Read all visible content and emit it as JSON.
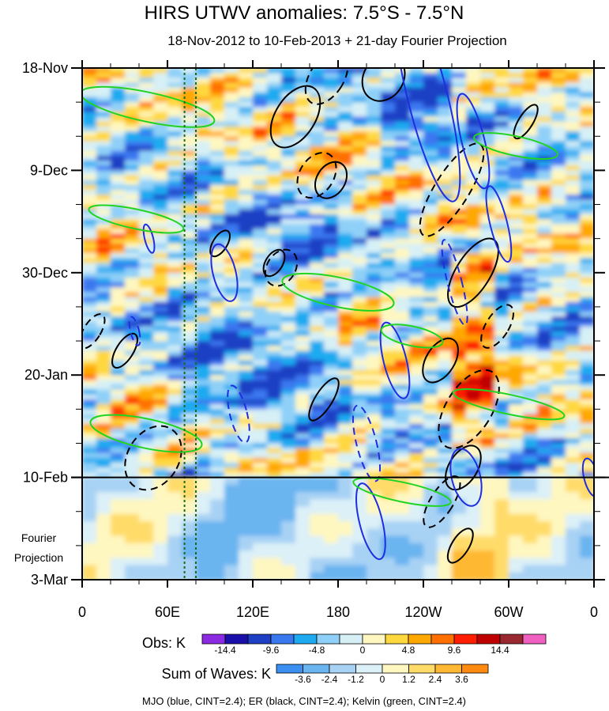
{
  "chart_data": {
    "type": "heatmap",
    "title": "HIRS UTWV anomalies: 7.5°S - 7.5°N",
    "subtitle": "18-Nov-2012 to 10-Feb-2013 + 21-day Fourier Projection",
    "x_axis": {
      "type": "longitude",
      "range_deg": [
        0,
        360
      ],
      "ticks": [
        {
          "lon": 0,
          "label": "0"
        },
        {
          "lon": 60,
          "label": "60E"
        },
        {
          "lon": 120,
          "label": "120E"
        },
        {
          "lon": 180,
          "label": "180"
        },
        {
          "lon": 240,
          "label": "120W"
        },
        {
          "lon": 300,
          "label": "60W"
        },
        {
          "lon": 360,
          "label": "0"
        }
      ]
    },
    "y_axis": {
      "type": "time",
      "start": "18-Nov-2012",
      "end": "3-Mar-2013",
      "days_total": 105,
      "ticks": [
        {
          "day": 0,
          "label": "18-Nov"
        },
        {
          "day": 21,
          "label": "9-Dec"
        },
        {
          "day": 42,
          "label": "30-Dec"
        },
        {
          "day": 63,
          "label": "20-Jan"
        },
        {
          "day": 84,
          "label": "10-Feb"
        },
        {
          "day": 105,
          "label": "3-Mar"
        }
      ],
      "minor_tick_interval_days": 7
    },
    "observation_end_day": 84,
    "projection_note": [
      "Fourier",
      "Projection"
    ],
    "reference_longitudes": [
      72,
      80
    ],
    "obs_colorbar": {
      "label": "Obs: K",
      "levels": [
        -14.4,
        -12,
        -9.6,
        -7.2,
        -4.8,
        -2.4,
        0,
        2.4,
        4.8,
        7.2,
        9.6,
        12,
        14.4
      ],
      "tick_labels": [
        "-14.4",
        "-9.6",
        "-4.8",
        "0",
        "4.8",
        "9.6",
        "14.4"
      ],
      "colors": [
        "#8a2be2",
        "#1a0fa8",
        "#1f3fc4",
        "#3a78f0",
        "#1eaaf0",
        "#8fd0f8",
        "#d7f0f6",
        "#fff7c0",
        "#ffd840",
        "#ffa800",
        "#ff7000",
        "#ff1e00",
        "#c00000",
        "#9a2830",
        "#f060c0"
      ]
    },
    "waves_colorbar": {
      "label": "Sum of Waves: K",
      "levels": [
        -3.6,
        -2.4,
        -1.2,
        0,
        1.2,
        2.4,
        3.6
      ],
      "tick_labels": [
        "-3.6",
        "-2.4",
        "-1.2",
        "0",
        "1.2",
        "2.4",
        "3.6"
      ],
      "colors": [
        "#3a8ff0",
        "#6ab4f0",
        "#a8d2f4",
        "#dcf0f8",
        "#fff7c0",
        "#ffdc6a",
        "#ffb833",
        "#ff8a10"
      ]
    },
    "contour_legend": "MJO (blue, CINT=2.4); ER (black, CINT=2.4); Kelvin (green, CINT=2.4)",
    "wave_series": [
      {
        "name": "MJO",
        "color": "#1f2ee0",
        "cint": 2.4
      },
      {
        "name": "ER",
        "color": "#000000",
        "cint": 2.4
      },
      {
        "name": "Kelvin",
        "color": "#22d422",
        "cint": 2.4
      }
    ],
    "approx_features": {
      "mjo_contours": [
        {
          "lon": 243,
          "day": 6,
          "dlon": 14,
          "dday": 22,
          "sign": 1
        },
        {
          "lon": 275,
          "day": 15,
          "dlon": 8,
          "dday": 10,
          "sign": 1
        },
        {
          "lon": 293,
          "day": 32,
          "dlon": 6,
          "dday": 8,
          "sign": 1
        },
        {
          "lon": 100,
          "day": 42,
          "dlon": 8,
          "dday": 6,
          "sign": 1
        },
        {
          "lon": 220,
          "day": 60,
          "dlon": 8,
          "dday": 8,
          "sign": 1
        },
        {
          "lon": 262,
          "day": 44,
          "dlon": 5,
          "dday": 9,
          "sign": -1
        },
        {
          "lon": 110,
          "day": 71,
          "dlon": 6,
          "dday": 6,
          "sign": -1
        },
        {
          "lon": 200,
          "day": 77,
          "dlon": 7,
          "dday": 8,
          "sign": -1
        },
        {
          "lon": 203,
          "day": 93,
          "dlon": 8,
          "dday": 8,
          "sign": 1
        },
        {
          "lon": 270,
          "day": 84,
          "dlon": 10,
          "dday": 6,
          "sign": 1
        },
        {
          "lon": 358,
          "day": 84,
          "dlon": 5,
          "dday": 4,
          "sign": 1
        },
        {
          "lon": 47,
          "day": 35,
          "dlon": 3,
          "dday": 3,
          "sign": 1
        },
        {
          "lon": 37,
          "day": 54,
          "dlon": 3,
          "dday": 3,
          "sign": -1
        }
      ],
      "er_contours": [
        {
          "lon": 150,
          "day": 10,
          "dlon": 14,
          "dday": 7,
          "sign": 1
        },
        {
          "lon": 172,
          "day": 2,
          "dlon": 12,
          "dday": 6,
          "sign": -1
        },
        {
          "lon": 175,
          "day": 23,
          "dlon": 10,
          "dday": 4,
          "sign": 1
        },
        {
          "lon": 165,
          "day": 22,
          "dlon": 12,
          "dday": 5,
          "sign": -1
        },
        {
          "lon": 212,
          "day": 2,
          "dlon": 14,
          "dday": 5,
          "sign": 1
        },
        {
          "lon": 260,
          "day": 25,
          "dlon": 12,
          "dday": 11,
          "sign": -1
        },
        {
          "lon": 252,
          "day": 60,
          "dlon": 10,
          "dday": 5,
          "sign": 1
        },
        {
          "lon": 275,
          "day": 42,
          "dlon": 12,
          "dday": 8,
          "sign": 1
        },
        {
          "lon": 272,
          "day": 70,
          "dlon": 16,
          "dday": 9,
          "sign": -1
        },
        {
          "lon": 268,
          "day": 82,
          "dlon": 10,
          "dday": 5,
          "sign": 1
        },
        {
          "lon": 253,
          "day": 89,
          "dlon": 8,
          "dday": 6,
          "sign": -1
        },
        {
          "lon": 266,
          "day": 98,
          "dlon": 6,
          "dday": 4,
          "sign": 1
        },
        {
          "lon": 30,
          "day": 58,
          "dlon": 6,
          "dday": 4,
          "sign": 1
        },
        {
          "lon": 7,
          "day": 54,
          "dlon": 6,
          "dday": 4,
          "sign": -1
        },
        {
          "lon": 50,
          "day": 80,
          "dlon": 18,
          "dday": 7,
          "sign": -1
        },
        {
          "lon": 135,
          "day": 40,
          "dlon": 6,
          "dday": 3,
          "sign": 1
        },
        {
          "lon": 140,
          "day": 41,
          "dlon": 10,
          "dday": 4,
          "sign": -1
        },
        {
          "lon": 312,
          "day": 11,
          "dlon": 5,
          "dday": 4,
          "sign": 1
        },
        {
          "lon": 97,
          "day": 36,
          "dlon": 5,
          "dday": 3,
          "sign": 1
        },
        {
          "lon": 292,
          "day": 53,
          "dlon": 8,
          "dday": 5,
          "sign": -1
        },
        {
          "lon": 170,
          "day": 68,
          "dlon": 6,
          "dday": 5,
          "sign": 1
        }
      ],
      "kelvin_contours": [
        {
          "lon": 46,
          "day": 8,
          "dlon": 48,
          "dday": 3
        },
        {
          "lon": 180,
          "day": 46,
          "dlon": 40,
          "dday": 3
        },
        {
          "lon": 232,
          "day": 55,
          "dlon": 22,
          "dday": 2
        },
        {
          "lon": 305,
          "day": 16,
          "dlon": 30,
          "dday": 2
        },
        {
          "lon": 45,
          "day": 75,
          "dlon": 40,
          "dday": 3
        },
        {
          "lon": 225,
          "day": 87,
          "dlon": 35,
          "dday": 2
        },
        {
          "lon": 38,
          "day": 31,
          "dlon": 34,
          "dday": 2
        },
        {
          "lon": 300,
          "day": 69,
          "dlon": 40,
          "dday": 2
        }
      ]
    }
  }
}
